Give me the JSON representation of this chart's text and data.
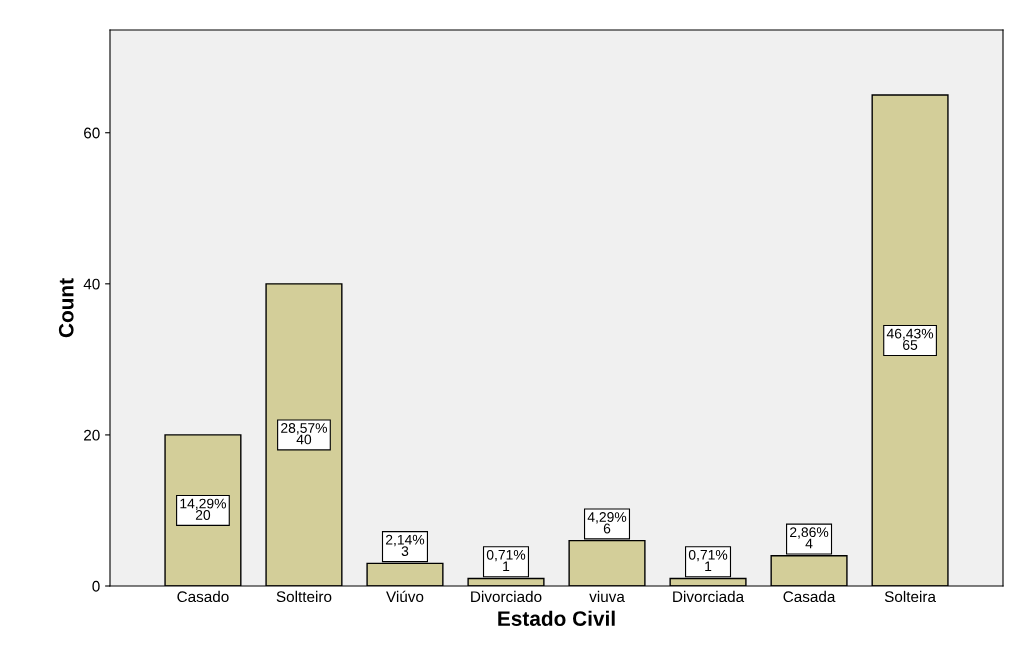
{
  "chart_data": {
    "type": "bar",
    "xlabel": "Estado Civil",
    "ylabel": "Count",
    "categories": [
      "Casado",
      "Soltteiro",
      "Viúvo",
      "Divorciado",
      "viuva",
      "Divorciada",
      "Casada",
      "Solteira"
    ],
    "values": [
      20,
      40,
      3,
      1,
      6,
      1,
      4,
      65
    ],
    "value_labels": [
      "14,29%\n20",
      "28,57%\n40",
      "2,14%\n3",
      "0,71%\n1",
      "4,29%\n6",
      "0,71%\n1",
      "2,86%\n4",
      "46,43%\n65"
    ],
    "color": "#d3ce99",
    "ylim": [
      0,
      73.6
    ],
    "yticks": [
      0,
      20,
      40,
      60
    ],
    "grid": false
  }
}
